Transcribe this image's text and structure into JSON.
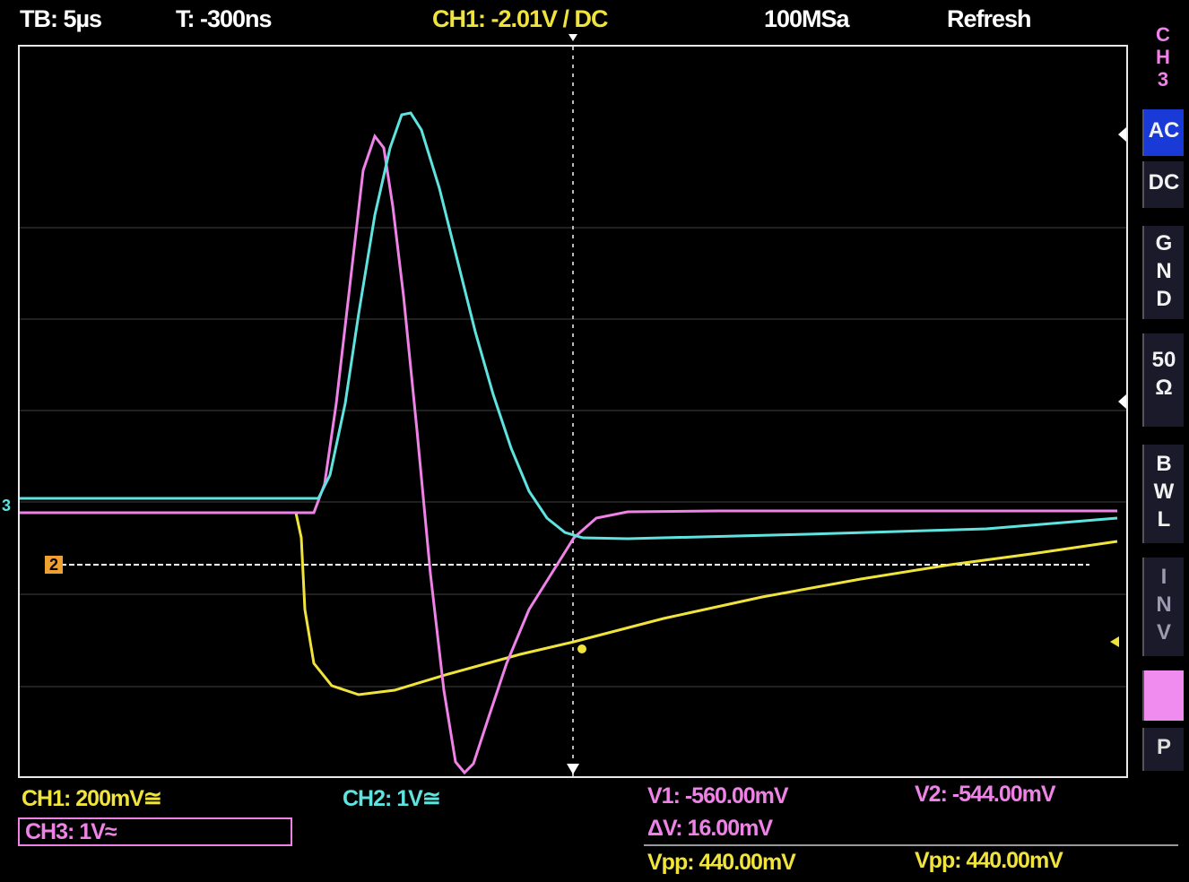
{
  "header": {
    "timebase": "TB: 5µs",
    "trigger_time": "T: -300ns",
    "trigger_channel": "CH1: -2.01V / DC",
    "sample_rate": "100MSa",
    "mode": "Refresh"
  },
  "side_panel": {
    "channel": [
      "C",
      "H",
      "3"
    ],
    "coupling_ac": "AC",
    "coupling_dc": "DC",
    "gnd": [
      "G",
      "N",
      "D"
    ],
    "impedance": [
      "50",
      "Ω"
    ],
    "bwl": [
      "B",
      "W",
      "L"
    ],
    "invert": [
      "I",
      "N",
      "V"
    ],
    "probe": "P"
  },
  "footer": {
    "ch1_scale": "CH1: 200mV≅",
    "ch2_scale": "CH2: 1V≅",
    "ch3_scale": "CH3: 1V≈",
    "v1": "V1: -560.00mV",
    "v2": "V2: -544.00mV",
    "delta_v": "ΔV: 16.00mV",
    "vpp1": "Vpp: 440.00mV",
    "vpp2": "Vpp: 440.00mV"
  },
  "markers": {
    "ch2_level": "2",
    "ch3_level": "3"
  },
  "colors": {
    "ch1": "#f0e43c",
    "ch2": "#5fe3df",
    "ch3": "#ee82e6",
    "grid": "#888888",
    "ac_highlight": "#1a3ad8",
    "probe_highlight": "#f08cf0"
  }
}
